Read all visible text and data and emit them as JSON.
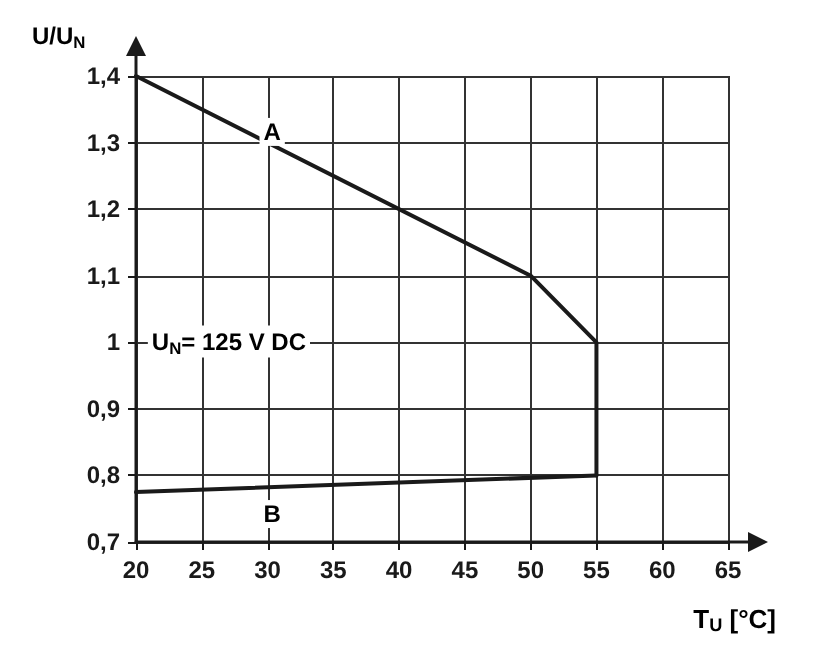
{
  "chart_data": {
    "type": "line",
    "xlabel": "T$_{U}$ [°C]",
    "ylabel": "U/U$_{N}$",
    "series": [
      {
        "color": "#1a1a1a",
        "x": [
          20,
          50,
          55,
          55
        ],
        "values": [
          1.4,
          1.1,
          1.0,
          0.8
        ]
      },
      {
        "color": "#1a1a1a",
        "x": [
          20,
          55
        ],
        "values": [
          0.775,
          0.8
        ]
      }
    ],
    "xlim": [
      20,
      65
    ],
    "xticks": [
      20,
      25,
      30,
      35,
      40,
      45,
      50,
      55,
      60,
      65
    ],
    "ylim": [
      0.7,
      1.4
    ],
    "yticks": [
      {
        "value": 0.7,
        "label": "0,7"
      },
      {
        "value": 0.8,
        "label": "0,8"
      },
      {
        "value": 0.9,
        "label": "0,9"
      },
      1,
      {
        "value": 1.1,
        "label": "1,1"
      },
      {
        "value": 1.2,
        "label": "1,2"
      },
      {
        "value": 1.3,
        "label": "1,3"
      },
      {
        "value": 1.4,
        "label": "1,4"
      }
    ],
    "annotations": [
      "A",
      "B",
      "U$_{N}$= 125 V DC"
    ],
    "grid": true,
    "legend": false,
    "marker": "none",
    "line_style": "solid"
  }
}
